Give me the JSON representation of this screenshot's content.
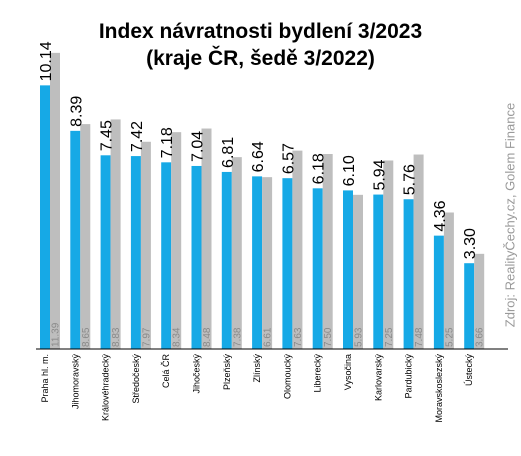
{
  "chart_data": {
    "type": "bar",
    "title": "Index návratnosti bydlení 3/2023",
    "subtitle": "(kraje ČR, šedě 3/2022)",
    "categories": [
      "Praha hl. m.",
      "Jihomoravský",
      "Královéhradecký",
      "Středočeský",
      "Celá ČR",
      "Jihočeský",
      "Plzeňský",
      "Zlínský",
      "Olomoucký",
      "Liberecký",
      "Vysočina",
      "Karlovarský",
      "Pardubický",
      "Moravskoslezský",
      "Ústecký"
    ],
    "series": [
      {
        "values": [
          10.14,
          8.39,
          7.45,
          7.42,
          7.18,
          7.04,
          6.81,
          6.64,
          6.57,
          6.18,
          6.1,
          5.94,
          5.76,
          4.36,
          3.3
        ]
      },
      {
        "values": [
          11.39,
          8.65,
          8.83,
          7.97,
          8.34,
          8.48,
          7.38,
          6.61,
          7.63,
          7.5,
          5.93,
          7.25,
          7.48,
          5.25,
          3.66
        ]
      }
    ],
    "value_labels": {
      "current": [
        "10.14",
        "8.39",
        "7.45",
        "7.42",
        "7.18",
        "7.04",
        "6.81",
        "6.64",
        "6.57",
        "6.18",
        "6.10",
        "5.94",
        "5.76",
        "4.36",
        "3.30"
      ],
      "previous": [
        "11.39",
        "8.65",
        "8.83",
        "7.97",
        "8.34",
        "8.48",
        "7.38",
        "6.61",
        "7.63",
        "7.50",
        "5.93",
        "7.25",
        "7.48",
        "5.25",
        "3.66"
      ]
    },
    "ylim": [
      0,
      12
    ],
    "grid": false,
    "legend": "none",
    "colors": {
      "current": "#16a9e6",
      "previous": "#bebebe",
      "axis": "#000000"
    }
  },
  "source_note": "Zdroj: RealityČechy.cz, Golem Finance"
}
